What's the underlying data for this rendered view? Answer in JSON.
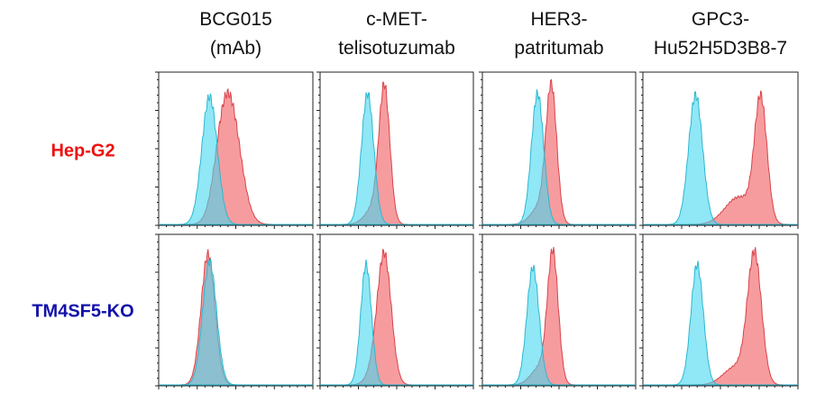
{
  "columns": [
    {
      "lines": [
        "BCG015",
        "(mAb)"
      ]
    },
    {
      "lines": [
        "c-MET-",
        "telisotuzumab"
      ]
    },
    {
      "lines": [
        "HER3-",
        "patritumab"
      ]
    },
    {
      "lines": [
        "GPC3-",
        "Hu52H5D3B8-7"
      ]
    }
  ],
  "rows": [
    {
      "label": "Hep-G2",
      "color": "#ee1111"
    },
    {
      "label": "TM4SF5-KO",
      "color": "#1111aa"
    }
  ]
}
